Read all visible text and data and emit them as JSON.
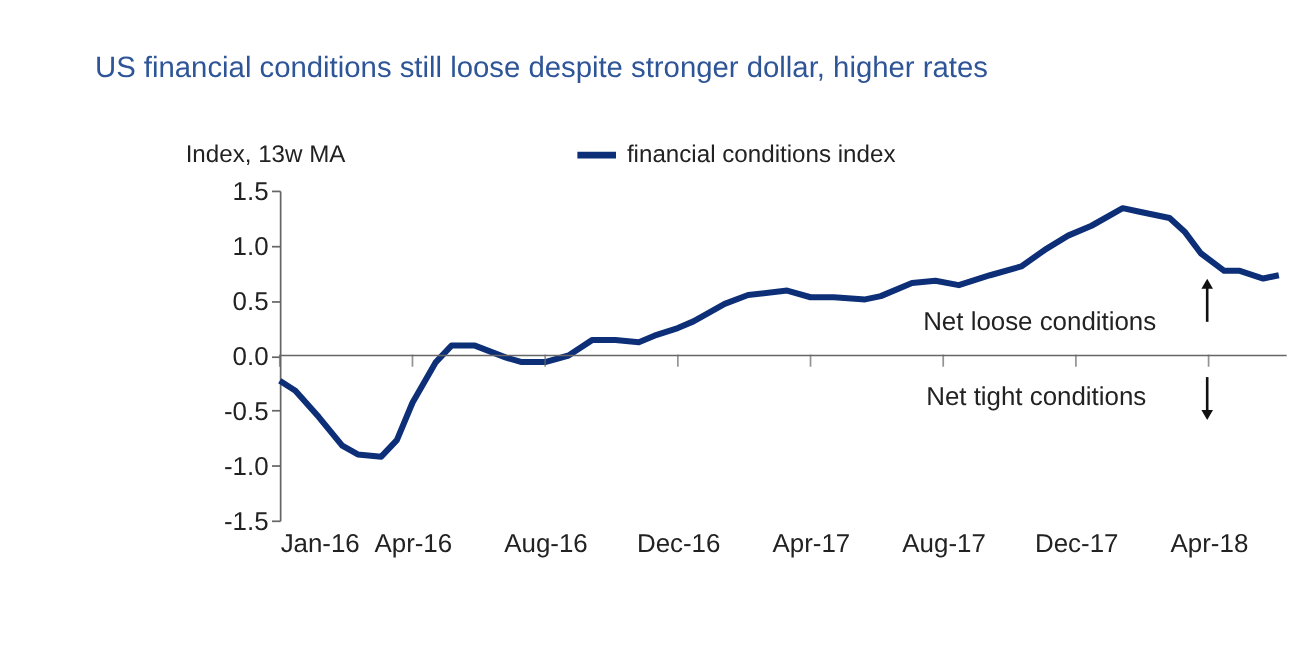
{
  "chart_data": {
    "type": "line",
    "title": "US financial conditions still loose despite stronger dollar, higher rates",
    "ylabel": "Index, 13w MA",
    "x": [
      "2016-01-01",
      "2016-01-15",
      "2016-02-05",
      "2016-02-26",
      "2016-03-11",
      "2016-04-01",
      "2016-04-15",
      "2016-04-29",
      "2016-05-20",
      "2016-06-03",
      "2016-06-24",
      "2016-07-22",
      "2016-08-05",
      "2016-08-26",
      "2016-09-16",
      "2016-10-07",
      "2016-10-28",
      "2016-11-18",
      "2016-12-02",
      "2016-12-23",
      "2017-01-06",
      "2017-02-03",
      "2017-02-24",
      "2017-03-31",
      "2017-04-21",
      "2017-05-12",
      "2017-06-09",
      "2017-06-23",
      "2017-07-21",
      "2017-08-11",
      "2017-09-01",
      "2017-09-29",
      "2017-10-27",
      "2017-11-17",
      "2017-12-08",
      "2017-12-29",
      "2018-01-26",
      "2018-02-09",
      "2018-03-09",
      "2018-03-23",
      "2018-04-06",
      "2018-04-27",
      "2018-05-11",
      "2018-06-01",
      "2018-06-15"
    ],
    "series": [
      {
        "name": "financial conditions index",
        "color": "#0d2f78",
        "values": [
          -0.23,
          -0.32,
          -0.56,
          -0.82,
          -0.9,
          -0.92,
          -0.77,
          -0.43,
          -0.06,
          0.09,
          0.09,
          -0.02,
          -0.06,
          -0.06,
          0.0,
          0.14,
          0.14,
          0.12,
          0.18,
          0.25,
          0.31,
          0.47,
          0.55,
          0.59,
          0.53,
          0.53,
          0.51,
          0.54,
          0.66,
          0.68,
          0.64,
          0.73,
          0.81,
          0.96,
          1.09,
          1.18,
          1.34,
          1.31,
          1.25,
          1.12,
          0.93,
          0.77,
          0.77,
          0.7,
          0.73
        ]
      }
    ],
    "xlim": [
      "2016-01-01",
      "2018-06-22"
    ],
    "xticks": [
      {
        "value": "2016-01-01",
        "label": "Jan-16"
      },
      {
        "value": "2016-04-29",
        "label": "Apr-16"
      },
      {
        "value": "2016-08-26",
        "label": "Aug-16"
      },
      {
        "value": "2016-12-23",
        "label": "Dec-16"
      },
      {
        "value": "2017-04-21",
        "label": "Apr-17"
      },
      {
        "value": "2017-08-18",
        "label": "Aug-17"
      },
      {
        "value": "2017-12-15",
        "label": "Dec-17"
      },
      {
        "value": "2018-04-13",
        "label": "Apr-18"
      }
    ],
    "ylim": [
      -1.5,
      1.5
    ],
    "yticks": [
      {
        "value": -1.5,
        "label": "-1.5"
      },
      {
        "value": -1.0,
        "label": "-1.0"
      },
      {
        "value": -0.5,
        "label": "-0.5"
      },
      {
        "value": 0,
        "label": "0.0"
      },
      {
        "value": 0.5,
        "label": "0.5"
      },
      {
        "value": 1.0,
        "label": "1.0"
      },
      {
        "value": 1.5,
        "label": "1.5"
      }
    ],
    "annotations": [
      "Net loose conditions",
      "Net tight conditions"
    ],
    "ref_lines": [
      {
        "axis": "y",
        "value": 0,
        "color": "#666666"
      }
    ],
    "grid": false,
    "legend": "top",
    "line_style": "solid",
    "marker": "none"
  }
}
